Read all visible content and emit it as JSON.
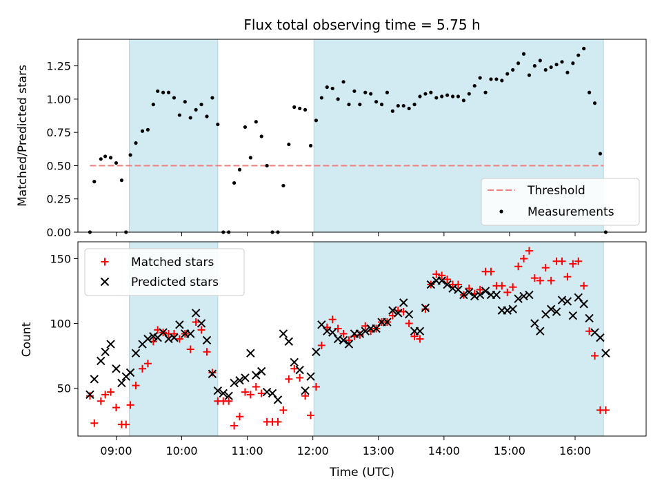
{
  "title": "Flux total observing time = 5.75 h",
  "colors": {
    "threshold": "#f08080",
    "measurement": "#000000",
    "matched": "#ff0000",
    "predicted": "#000000",
    "shade": "#add8e6"
  },
  "chart_data": [
    {
      "type": "scatter",
      "panel": "top",
      "xlabel": "",
      "ylabel": "Matched/Predicted stars",
      "xlim": [
        "08:25",
        "17:05"
      ],
      "ylim": [
        0,
        1.45
      ],
      "yticks": [
        0.0,
        0.25,
        0.5,
        0.75,
        1.0,
        1.25
      ],
      "ytick_labels": [
        "0.00",
        "0.25",
        "0.50",
        "0.75",
        "1.00",
        "1.25"
      ],
      "legend_position": "lower-right",
      "legend": [
        "Threshold",
        "Measurements"
      ],
      "shaded_intervals": [
        [
          "09:12",
          "10:33"
        ],
        [
          "12:01",
          "16:26"
        ]
      ],
      "threshold": {
        "name": "Threshold",
        "value": 0.5,
        "x_range": [
          "08:36",
          "16:26"
        ]
      },
      "series": [
        {
          "name": "Measurements",
          "x": [
            "08:36",
            "08:40",
            "08:46",
            "08:50",
            "08:55",
            "09:00",
            "09:05",
            "09:09",
            "09:13",
            "09:18",
            "09:24",
            "09:29",
            "09:34",
            "09:38",
            "09:43",
            "09:48",
            "09:53",
            "09:58",
            "10:03",
            "10:08",
            "10:13",
            "10:18",
            "10:23",
            "10:28",
            "10:33",
            "10:38",
            "10:43",
            "10:48",
            "10:53",
            "10:58",
            "11:03",
            "11:08",
            "11:13",
            "11:18",
            "11:23",
            "11:28",
            "11:33",
            "11:38",
            "11:43",
            "11:48",
            "11:53",
            "11:58",
            "12:03",
            "12:08",
            "12:13",
            "12:18",
            "12:23",
            "12:28",
            "12:33",
            "12:38",
            "12:43",
            "12:48",
            "12:53",
            "12:58",
            "13:03",
            "13:08",
            "13:13",
            "13:18",
            "13:23",
            "13:28",
            "13:33",
            "13:38",
            "13:43",
            "13:48",
            "13:53",
            "13:58",
            "14:03",
            "14:08",
            "14:13",
            "14:18",
            "14:23",
            "14:28",
            "14:33",
            "14:38",
            "14:43",
            "14:48",
            "14:53",
            "14:58",
            "15:03",
            "15:08",
            "15:13",
            "15:18",
            "15:23",
            "15:28",
            "15:33",
            "15:38",
            "15:43",
            "15:48",
            "15:53",
            "15:58",
            "16:03",
            "16:08",
            "16:13",
            "16:18",
            "16:23",
            "16:28"
          ],
          "y": [
            0.0,
            0.38,
            0.55,
            0.57,
            0.56,
            0.52,
            0.39,
            0.0,
            0.58,
            0.67,
            0.76,
            0.77,
            0.96,
            1.06,
            1.05,
            1.05,
            1.01,
            0.88,
            0.98,
            0.86,
            0.92,
            0.96,
            0.87,
            1.01,
            0.81,
            0.0,
            0.0,
            0.37,
            0.47,
            0.79,
            0.56,
            0.83,
            0.72,
            0.5,
            0.0,
            0.0,
            0.35,
            0.66,
            0.94,
            0.93,
            0.92,
            0.65,
            0.84,
            1.01,
            1.09,
            1.08,
            1.0,
            1.13,
            0.96,
            1.06,
            0.96,
            1.05,
            1.04,
            0.98,
            0.96,
            1.05,
            0.91,
            0.95,
            0.95,
            0.93,
            0.96,
            1.02,
            1.04,
            1.05,
            1.01,
            1.02,
            1.03,
            1.02,
            1.02,
            0.99,
            1.04,
            1.1,
            1.16,
            1.05,
            1.15,
            1.15,
            1.14,
            1.19,
            1.22,
            1.27,
            1.34,
            1.18,
            1.25,
            1.29,
            1.22,
            1.24,
            1.26,
            1.28,
            1.2,
            1.27,
            1.33,
            1.38,
            1.05,
            0.97,
            0.59,
            0.0
          ]
        }
      ]
    },
    {
      "type": "scatter",
      "panel": "bottom",
      "xlabel": "Time (UTC)",
      "ylabel": "Count",
      "xlim": [
        "08:25",
        "17:05"
      ],
      "ylim": [
        13,
        163
      ],
      "yticks": [
        50,
        100,
        150
      ],
      "ytick_labels": [
        "50",
        "100",
        "150"
      ],
      "xtick_labels": [
        "09:00",
        "10:00",
        "11:00",
        "12:00",
        "13:00",
        "14:00",
        "15:00",
        "16:00"
      ],
      "legend_position": "top-left",
      "legend": [
        "Matched stars",
        "Predicted stars"
      ],
      "shaded_intervals": [
        [
          "09:12",
          "10:33"
        ],
        [
          "12:01",
          "16:26"
        ]
      ],
      "series": [
        {
          "name": "Matched stars",
          "marker": "+",
          "x": [
            "08:36",
            "08:40",
            "08:46",
            "08:50",
            "08:55",
            "09:00",
            "09:05",
            "09:09",
            "09:13",
            "09:18",
            "09:24",
            "09:29",
            "09:34",
            "09:38",
            "09:43",
            "09:48",
            "09:53",
            "09:58",
            "10:03",
            "10:08",
            "10:13",
            "10:18",
            "10:23",
            "10:28",
            "10:33",
            "10:38",
            "10:43",
            "10:48",
            "10:53",
            "10:58",
            "11:03",
            "11:08",
            "11:13",
            "11:18",
            "11:23",
            "11:28",
            "11:33",
            "11:38",
            "11:43",
            "11:48",
            "11:53",
            "11:58",
            "12:03",
            "12:08",
            "12:13",
            "12:18",
            "12:23",
            "12:28",
            "12:33",
            "12:38",
            "12:43",
            "12:48",
            "12:53",
            "12:58",
            "13:03",
            "13:08",
            "13:13",
            "13:18",
            "13:23",
            "13:28",
            "13:33",
            "13:38",
            "13:43",
            "13:48",
            "13:53",
            "13:58",
            "14:03",
            "14:08",
            "14:13",
            "14:18",
            "14:23",
            "14:28",
            "14:33",
            "14:38",
            "14:43",
            "14:48",
            "14:53",
            "14:58",
            "15:03",
            "15:08",
            "15:13",
            "15:18",
            "15:23",
            "15:28",
            "15:33",
            "15:38",
            "15:43",
            "15:48",
            "15:53",
            "15:58",
            "16:03",
            "16:08",
            "16:13",
            "16:18",
            "16:23",
            "16:28"
          ],
          "y": [
            44,
            23,
            40,
            45,
            47,
            35,
            22,
            22,
            37,
            52,
            65,
            69,
            86,
            95,
            93,
            92,
            92,
            88,
            92,
            80,
            101,
            95,
            78,
            62,
            40,
            40,
            40,
            21,
            28,
            47,
            45,
            51,
            46,
            24,
            24,
            24,
            33,
            57,
            65,
            58,
            44,
            29,
            51,
            83,
            97,
            103,
            96,
            92,
            87,
            90,
            91,
            98,
            94,
            96,
            101,
            101,
            106,
            110,
            109,
            100,
            90,
            88,
            111,
            130,
            138,
            137,
            134,
            130,
            130,
            122,
            127,
            123,
            126,
            140,
            140,
            129,
            129,
            124,
            128,
            144,
            150,
            156,
            135,
            133,
            143,
            133,
            148,
            148,
            136,
            146,
            148,
            129,
            94,
            75,
            33,
            33
          ]
        },
        {
          "name": "Predicted stars",
          "marker": "x",
          "x": [
            "08:36",
            "08:40",
            "08:46",
            "08:50",
            "08:55",
            "09:00",
            "09:05",
            "09:09",
            "09:13",
            "09:18",
            "09:24",
            "09:29",
            "09:34",
            "09:38",
            "09:43",
            "09:48",
            "09:53",
            "09:58",
            "10:03",
            "10:08",
            "10:13",
            "10:18",
            "10:23",
            "10:28",
            "10:33",
            "10:38",
            "10:43",
            "10:48",
            "10:53",
            "10:58",
            "11:03",
            "11:08",
            "11:13",
            "11:18",
            "11:23",
            "11:28",
            "11:33",
            "11:38",
            "11:43",
            "11:48",
            "11:53",
            "11:58",
            "12:03",
            "12:08",
            "12:13",
            "12:18",
            "12:23",
            "12:28",
            "12:33",
            "12:38",
            "12:43",
            "12:48",
            "12:53",
            "12:58",
            "13:03",
            "13:08",
            "13:13",
            "13:18",
            "13:23",
            "13:28",
            "13:33",
            "13:38",
            "13:43",
            "13:48",
            "13:53",
            "13:58",
            "14:03",
            "14:08",
            "14:13",
            "14:18",
            "14:23",
            "14:28",
            "14:33",
            "14:38",
            "14:43",
            "14:48",
            "14:53",
            "14:58",
            "15:03",
            "15:08",
            "15:13",
            "15:18",
            "15:23",
            "15:28",
            "15:33",
            "15:38",
            "15:43",
            "15:48",
            "15:53",
            "15:58",
            "16:03",
            "16:08",
            "16:13",
            "16:18",
            "16:23",
            "16:28"
          ],
          "y": [
            45,
            57,
            71,
            78,
            84,
            65,
            54,
            59,
            62,
            77,
            84,
            88,
            90,
            89,
            93,
            88,
            89,
            99,
            92,
            92,
            108,
            100,
            87,
            61,
            48,
            46,
            44,
            54,
            56,
            58,
            77,
            60,
            63,
            47,
            46,
            41,
            92,
            86,
            70,
            64,
            48,
            59,
            78,
            99,
            94,
            93,
            88,
            87,
            84,
            92,
            92,
            94,
            96,
            96,
            101,
            101,
            110,
            108,
            116,
            107,
            94,
            94,
            112,
            130,
            133,
            133,
            130,
            127,
            126,
            122,
            124,
            121,
            122,
            125,
            122,
            122,
            110,
            110,
            111,
            119,
            121,
            122,
            100,
            94,
            107,
            111,
            109,
            118,
            117,
            106,
            120,
            115,
            104,
            93,
            89,
            77
          ]
        }
      ]
    }
  ]
}
